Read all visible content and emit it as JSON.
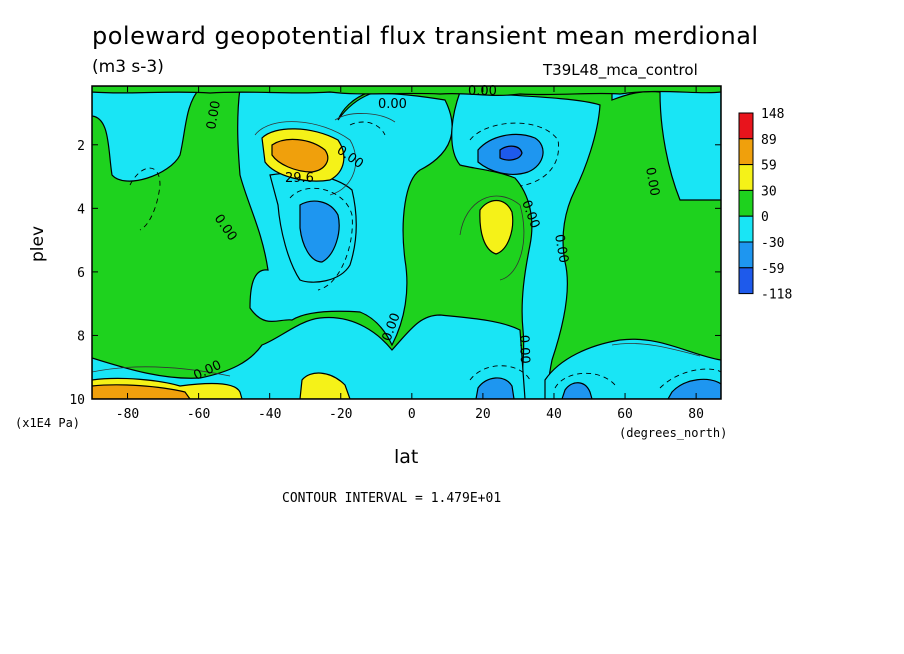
{
  "chart_data": {
    "type": "heatmap",
    "title": "poleward geopotential flux transient mean merdional",
    "units": "(m3 s-3)",
    "experiment": "T39L48_mca_control",
    "xlabel": "lat",
    "x_unit": "(degrees_north)",
    "ylabel": "plev",
    "y_unit": "(x1E4 Pa)",
    "x_ticks": [
      "-80",
      "-60",
      "-40",
      "-20",
      "0",
      "20",
      "40",
      "60",
      "80"
    ],
    "y_ticks": [
      "2",
      "4",
      "6",
      "8",
      "10"
    ],
    "xlim": [
      -90,
      87
    ],
    "ylim": [
      10,
      0.15
    ],
    "contour_interval": "CONTOUR INTERVAL = 1.479E+01",
    "contour_labels": [
      "0.00",
      "29.6"
    ],
    "colorbar": {
      "labels": [
        "148",
        "89",
        "59",
        "30",
        "0",
        "-30",
        "-59",
        "-118"
      ],
      "colors": [
        "#e8141c",
        "#f0a00c",
        "#f5f218",
        "#1ed21e",
        "#19e5f5",
        "#1e96f0",
        "#1e5aeb"
      ]
    },
    "features": [
      {
        "lat": -30,
        "plev": 2.3,
        "value": 59
      },
      {
        "lat": -27,
        "plev": 4.5,
        "value": -30
      },
      {
        "lat": 28,
        "plev": 4.1,
        "value": 30
      },
      {
        "lat": 30,
        "plev": 2.2,
        "value": -59
      },
      {
        "lat": -75,
        "plev": 9.8,
        "value": 59
      },
      {
        "lat": -25,
        "plev": 9.7,
        "value": 30
      },
      {
        "lat": 25,
        "plev": 9.6,
        "value": -30
      },
      {
        "lat": 80,
        "plev": 9.8,
        "value": -30
      }
    ]
  }
}
